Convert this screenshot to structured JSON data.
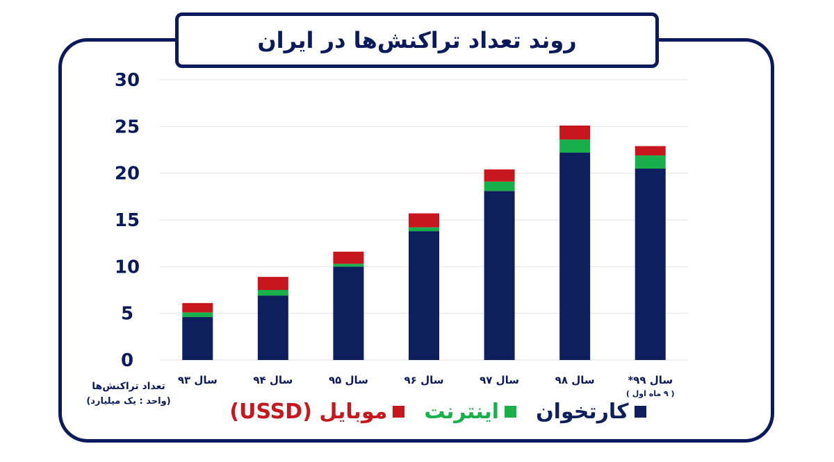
{
  "title": "روند تعداد تراکنش‌ها در ایران",
  "colors": {
    "frame": "#0b1a5c",
    "card": "#0d1f5c",
    "internet": "#18b04a",
    "mobile": "#c8161e",
    "grid": "#e2e2e2"
  },
  "y_axis_title": "تعداد تراکنش‌ها",
  "y_axis_unit": "(واحد : یک میلیارد)",
  "chart_data": {
    "type": "bar",
    "stacked": true,
    "categories": [
      "سال ۹۳",
      "سال ۹۴",
      "سال ۹۵",
      "سال ۹۶",
      "سال ۹۷",
      "سال ۹۸",
      "سال ۹۹*"
    ],
    "category_notes": [
      "",
      "",
      "",
      "",
      "",
      "",
      "( ۹ ماه اول )"
    ],
    "series": [
      {
        "name": "کارتخوان",
        "values": [
          4.6,
          6.9,
          10.0,
          13.8,
          18.1,
          22.2,
          20.5
        ]
      },
      {
        "name": "اینترنت",
        "values": [
          0.5,
          0.6,
          0.3,
          0.4,
          1.0,
          1.4,
          1.4
        ]
      },
      {
        "name": "موبایل (USSD)",
        "values": [
          1.0,
          1.4,
          1.3,
          1.5,
          1.3,
          1.5,
          1.0
        ]
      }
    ],
    "ylim": [
      0,
      30
    ],
    "yticks": [
      0,
      5,
      10,
      15,
      20,
      25,
      30
    ],
    "ytick_labels": [
      "0",
      "5",
      "10",
      "15",
      "20",
      "25",
      "30"
    ],
    "grid": true,
    "legend_position": "bottom"
  },
  "legend": [
    {
      "label": "کارتخوان",
      "color": "#0d1f5c"
    },
    {
      "label": "اینترنت",
      "color": "#18b04a"
    },
    {
      "label": "موبایل (USSD)",
      "color": "#c8161e"
    }
  ]
}
